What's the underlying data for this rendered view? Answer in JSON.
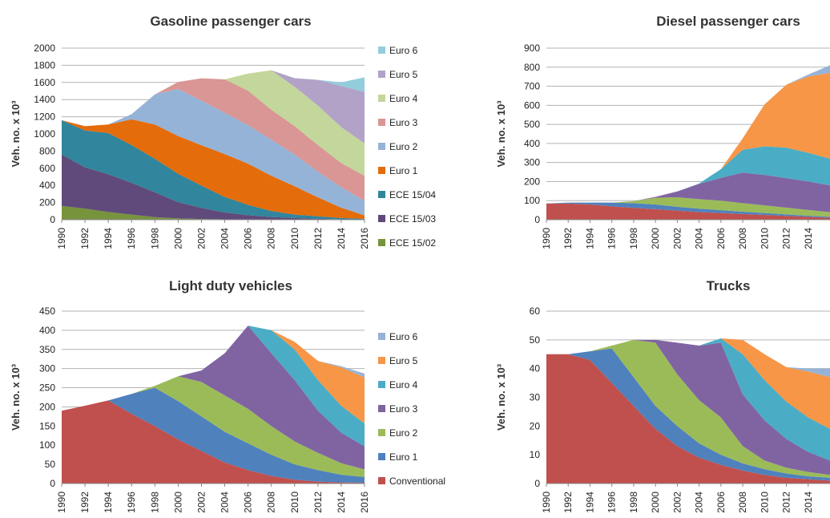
{
  "chart_data": [
    {
      "type": "area",
      "stacked": true,
      "title": "Gasoline passenger cars",
      "ylabel": "Veh. no. x 10³",
      "ylim": [
        0,
        2000
      ],
      "yticks": [
        0,
        200,
        400,
        600,
        800,
        1000,
        1200,
        1400,
        1600,
        1800,
        2000
      ],
      "x": [
        1990,
        1992,
        1994,
        1996,
        1998,
        2000,
        2002,
        2004,
        2006,
        2008,
        2010,
        2012,
        2014,
        2016
      ],
      "xticks": [
        "1990",
        "1992",
        "1994",
        "1996",
        "1998",
        "2000",
        "2002",
        "2004",
        "2006",
        "2008",
        "2010",
        "2012",
        "2014",
        "2016"
      ],
      "grid": true,
      "legend_position": "right",
      "legend": [
        "Euro 6",
        "Euro 5",
        "Euro 4",
        "Euro 3",
        "Euro 2",
        "Euro 1",
        "ECE 15/04",
        "ECE 15/03",
        "ECE 15/02"
      ],
      "series": [
        {
          "name": "ECE 15/02",
          "color": "#77933c",
          "values": [
            160,
            130,
            90,
            60,
            30,
            15,
            8,
            5,
            3,
            2,
            0,
            0,
            0,
            0
          ]
        },
        {
          "name": "ECE 15/03",
          "color": "#604a7b",
          "values": [
            600,
            480,
            440,
            370,
            290,
            190,
            130,
            80,
            50,
            30,
            20,
            10,
            5,
            0
          ]
        },
        {
          "name": "ECE 15/04",
          "color": "#31859c",
          "values": [
            400,
            430,
            480,
            440,
            390,
            330,
            260,
            180,
            120,
            70,
            40,
            30,
            15,
            10
          ]
        },
        {
          "name": "Euro 1",
          "color": "#e46c0a",
          "values": [
            0,
            50,
            100,
            300,
            400,
            440,
            470,
            500,
            480,
            410,
            330,
            220,
            120,
            40
          ]
        },
        {
          "name": "Euro 2",
          "color": "#95b3d7",
          "values": [
            0,
            0,
            0,
            60,
            350,
            550,
            520,
            480,
            450,
            420,
            370,
            300,
            240,
            170
          ]
        },
        {
          "name": "Euro 3",
          "color": "#d99694",
          "values": [
            0,
            0,
            0,
            0,
            0,
            80,
            260,
            390,
            400,
            350,
            330,
            310,
            280,
            290
          ]
        },
        {
          "name": "Euro 4",
          "color": "#c3d69b",
          "values": [
            0,
            0,
            0,
            0,
            0,
            0,
            0,
            0,
            200,
            460,
            460,
            460,
            420,
            380
          ]
        },
        {
          "name": "Euro 5",
          "color": "#b2a2c7",
          "values": [
            0,
            0,
            0,
            0,
            0,
            0,
            0,
            0,
            0,
            0,
            100,
            300,
            480,
            600
          ]
        },
        {
          "name": "Euro 6",
          "color": "#93cddd",
          "values": [
            0,
            0,
            0,
            0,
            0,
            0,
            0,
            0,
            0,
            0,
            0,
            0,
            40,
            170
          ]
        }
      ]
    },
    {
      "type": "area",
      "stacked": true,
      "title": "Diesel passenger cars",
      "ylabel": "Veh. no. x 10³",
      "ylim": [
        0,
        900
      ],
      "yticks": [
        0,
        100,
        200,
        300,
        400,
        500,
        600,
        700,
        800,
        900
      ],
      "x": [
        1990,
        1992,
        1994,
        1996,
        1998,
        2000,
        2002,
        2004,
        2006,
        2008,
        2010,
        2012,
        2014,
        2016
      ],
      "xticks": [
        "1990",
        "1992",
        "1994",
        "1996",
        "1998",
        "2000",
        "2002",
        "2004",
        "2006",
        "2008",
        "2010",
        "2012",
        "2014"
      ],
      "grid": true,
      "series": [
        {
          "name": "Conventional",
          "color": "#c0504d",
          "values": [
            85,
            85,
            80,
            70,
            62,
            55,
            48,
            40,
            35,
            30,
            25,
            20,
            15,
            10
          ]
        },
        {
          "name": "Euro 1",
          "color": "#4f81bd",
          "values": [
            0,
            5,
            10,
            20,
            25,
            25,
            20,
            18,
            15,
            12,
            10,
            8,
            6,
            5
          ]
        },
        {
          "name": "Euro 2",
          "color": "#9bbb59",
          "values": [
            0,
            0,
            0,
            0,
            10,
            35,
            50,
            50,
            50,
            45,
            40,
            35,
            30,
            25
          ]
        },
        {
          "name": "Euro 3",
          "color": "#8064a2",
          "values": [
            0,
            0,
            0,
            0,
            0,
            5,
            30,
            80,
            120,
            160,
            160,
            155,
            150,
            140
          ]
        },
        {
          "name": "Euro 4",
          "color": "#4bacc6",
          "values": [
            0,
            0,
            0,
            0,
            0,
            0,
            0,
            2,
            45,
            120,
            150,
            160,
            150,
            140
          ]
        },
        {
          "name": "Euro 5",
          "color": "#f79646",
          "values": [
            0,
            0,
            0,
            0,
            0,
            0,
            0,
            0,
            0,
            60,
            220,
            330,
            400,
            450
          ]
        },
        {
          "name": "Euro 6",
          "color": "#95b3d7",
          "values": [
            0,
            0,
            0,
            0,
            0,
            0,
            0,
            0,
            0,
            0,
            0,
            0,
            10,
            40
          ]
        }
      ]
    },
    {
      "type": "area",
      "stacked": true,
      "title": "Light duty vehicles",
      "ylabel": "Veh. no. x 10³",
      "ylim": [
        0,
        450
      ],
      "yticks": [
        0,
        50,
        100,
        150,
        200,
        250,
        300,
        350,
        400,
        450
      ],
      "x": [
        1990,
        1992,
        1994,
        1996,
        1998,
        2000,
        2002,
        2004,
        2006,
        2008,
        2010,
        2012,
        2014,
        2016
      ],
      "xticks": [
        "1990",
        "1992",
        "1994",
        "1996",
        "1998",
        "2000",
        "2002",
        "2004",
        "2006",
        "2008",
        "2010",
        "2012",
        "2014",
        "2016"
      ],
      "grid": true,
      "legend_position": "right",
      "legend": [
        "Euro 6",
        "Euro 5",
        "Euro 4",
        "Euro 3",
        "Euro 2",
        "Euro 1",
        "Conventional"
      ],
      "series": [
        {
          "name": "Conventional",
          "color": "#c0504d",
          "values": [
            190,
            203,
            217,
            182,
            150,
            115,
            85,
            55,
            35,
            20,
            10,
            5,
            3,
            2
          ]
        },
        {
          "name": "Euro 1",
          "color": "#4f81bd",
          "values": [
            0,
            0,
            0,
            52,
            100,
            100,
            90,
            80,
            70,
            55,
            40,
            30,
            20,
            15
          ]
        },
        {
          "name": "Euro 2",
          "color": "#9bbb59",
          "values": [
            0,
            0,
            0,
            0,
            5,
            65,
            90,
            95,
            90,
            75,
            60,
            45,
            30,
            20
          ]
        },
        {
          "name": "Euro 3",
          "color": "#8064a2",
          "values": [
            0,
            0,
            0,
            0,
            0,
            0,
            30,
            110,
            217,
            190,
            160,
            110,
            80,
            60
          ]
        },
        {
          "name": "Euro 4",
          "color": "#4bacc6",
          "values": [
            0,
            0,
            0,
            0,
            0,
            0,
            0,
            0,
            0,
            60,
            80,
            80,
            70,
            60
          ]
        },
        {
          "name": "Euro 5",
          "color": "#f79646",
          "values": [
            0,
            0,
            0,
            0,
            0,
            0,
            0,
            0,
            0,
            0,
            20,
            50,
            100,
            120
          ]
        },
        {
          "name": "Euro 6",
          "color": "#95b3d7",
          "values": [
            0,
            0,
            0,
            0,
            0,
            0,
            0,
            0,
            0,
            0,
            0,
            0,
            3,
            10
          ]
        }
      ]
    },
    {
      "type": "area",
      "stacked": true,
      "title": "Trucks",
      "ylabel": "Veh. no. x 10³",
      "ylim": [
        0,
        60
      ],
      "yticks": [
        0,
        10,
        20,
        30,
        40,
        50,
        60
      ],
      "x": [
        1990,
        1992,
        1994,
        1996,
        1998,
        2000,
        2002,
        2004,
        2006,
        2008,
        2010,
        2012,
        2014,
        2016
      ],
      "xticks": [
        "1990",
        "1992",
        "1994",
        "1996",
        "1998",
        "2000",
        "2002",
        "2004",
        "2006",
        "2008",
        "2010",
        "2012",
        "2014"
      ],
      "grid": true,
      "series": [
        {
          "name": "Conventional",
          "color": "#c0504d",
          "values": [
            45,
            45,
            43,
            35,
            27,
            19,
            13,
            9,
            6.5,
            4.5,
            3,
            2,
            1.5,
            1
          ]
        },
        {
          "name": "Euro 1",
          "color": "#4f81bd",
          "values": [
            0,
            0,
            3,
            12,
            10,
            8,
            7,
            5,
            3.5,
            2.5,
            2,
            1.5,
            1,
            1
          ]
        },
        {
          "name": "Euro 2",
          "color": "#9bbb59",
          "values": [
            0,
            0,
            0,
            1,
            13,
            22,
            18,
            15,
            13,
            6,
            3,
            2,
            1.5,
            1
          ]
        },
        {
          "name": "Euro 3",
          "color": "#8064a2",
          "values": [
            0,
            0,
            0,
            0,
            0,
            1,
            11,
            19,
            26,
            18,
            14,
            10,
            7,
            5
          ]
        },
        {
          "name": "Euro 4",
          "color": "#4bacc6",
          "values": [
            0,
            0,
            0,
            0,
            0,
            0,
            0,
            0,
            1.5,
            14,
            14,
            13,
            12,
            11
          ]
        },
        {
          "name": "Euro 5",
          "color": "#f79646",
          "values": [
            0,
            0,
            0,
            0,
            0,
            0,
            0,
            0,
            0,
            5,
            9,
            12,
            16,
            18
          ]
        },
        {
          "name": "Euro 6",
          "color": "#95b3d7",
          "values": [
            0,
            0,
            0,
            0,
            0,
            0,
            0,
            0,
            0,
            0,
            0,
            0,
            1,
            3
          ]
        }
      ]
    }
  ]
}
